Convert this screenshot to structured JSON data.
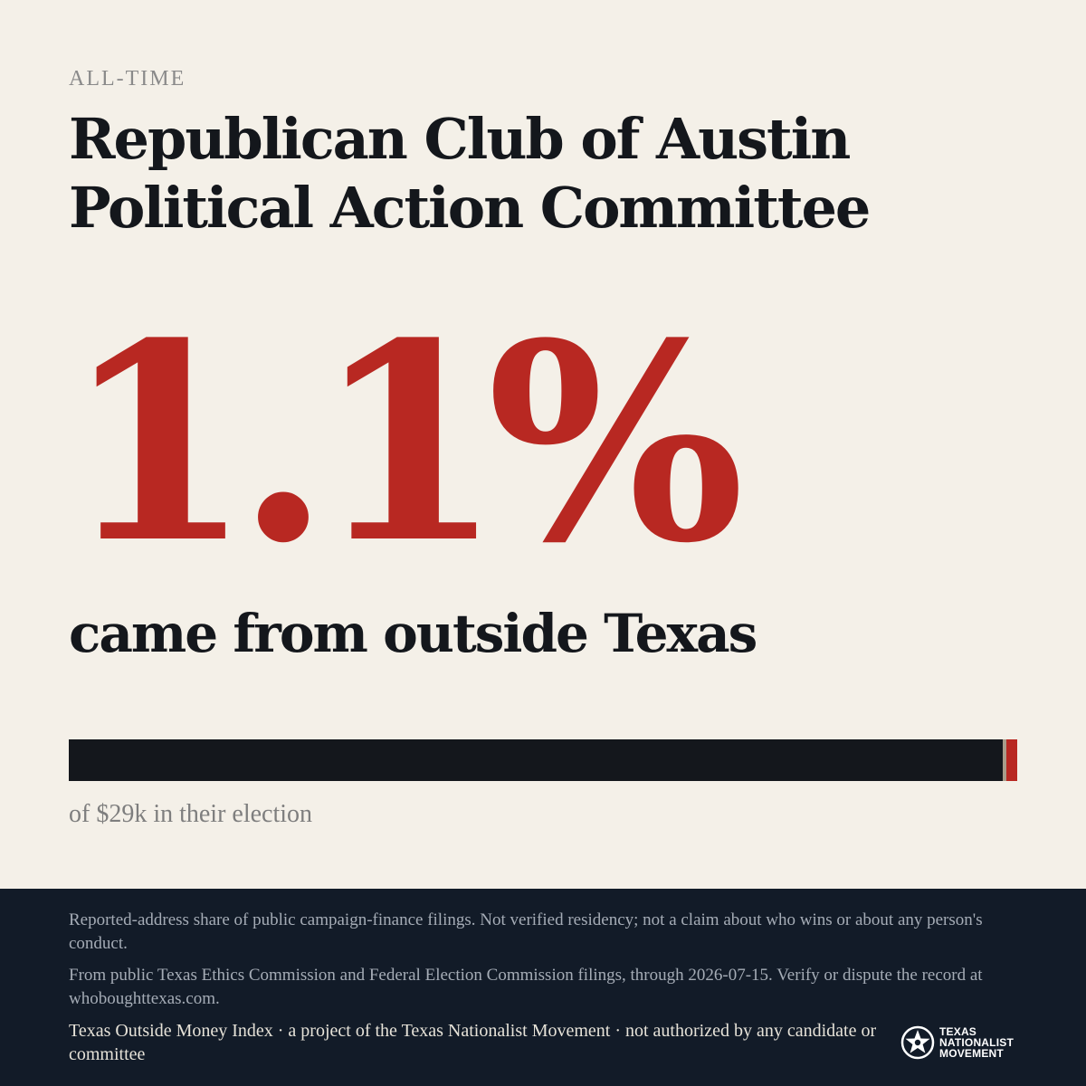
{
  "header": {
    "kicker": "ALL-TIME",
    "title": "Republican Club of Austin Political Action Committee"
  },
  "stat": {
    "value": "1.1%",
    "caption": "came from outside Texas",
    "share_percent": 1.1
  },
  "bar": {
    "base_color": "#14171c",
    "fill_color": "#b82822"
  },
  "total": {
    "text": "of $29k in their election"
  },
  "footer": {
    "disclaimer": "Reported-address share of public campaign-finance filings. Not verified residency; not a claim about who wins or about any person's conduct.",
    "source": "From public Texas Ethics Commission and Federal Election Commission filings, through 2026-07-15. Verify or dispute the record at whoboughttexas.com.",
    "credit": "Texas Outside Money Index · a project of the Texas Nationalist Movement · not authorized by any candidate or committee",
    "logo": {
      "line1": "TEXAS",
      "line2": "NATIONALIST",
      "line3": "MOVEMENT",
      "icon": "star-seal-icon"
    }
  },
  "colors": {
    "accent": "#b82822",
    "background": "#f4f0e8",
    "footer_background": "#121b28"
  }
}
